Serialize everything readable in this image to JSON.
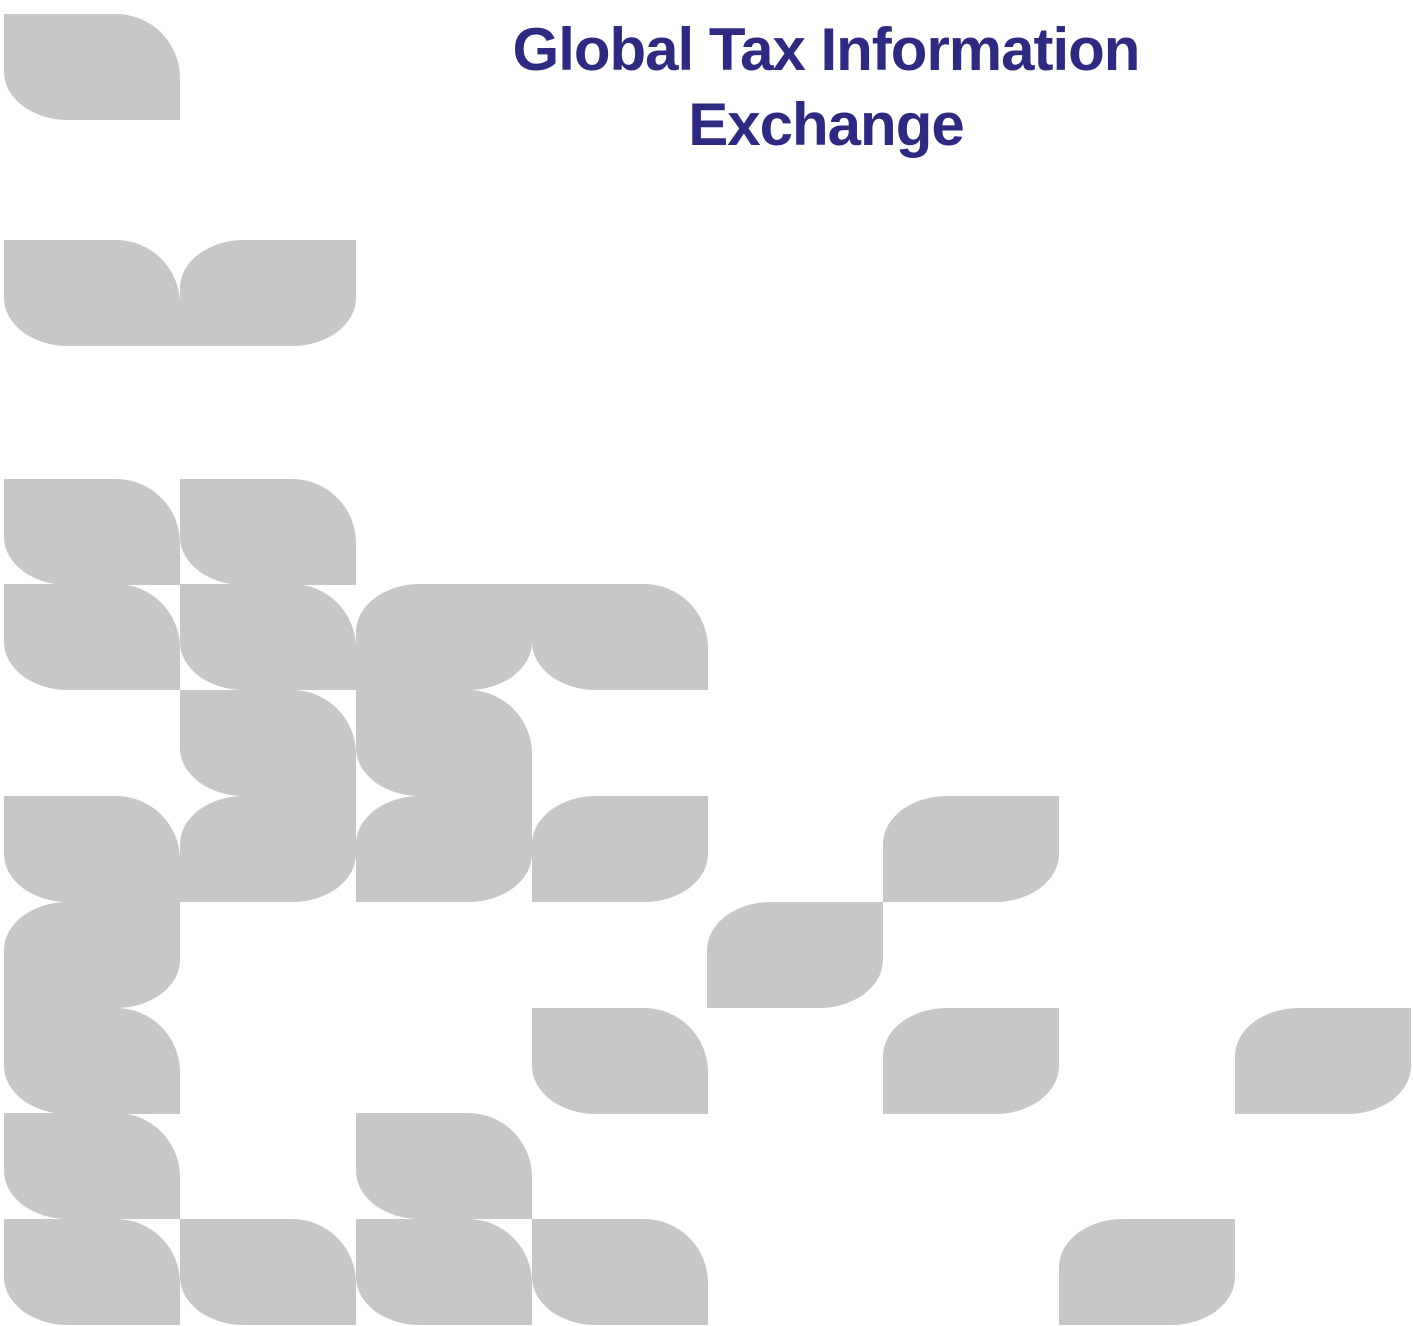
{
  "header": {
    "title": "Global Tax Information Exchange"
  }
}
